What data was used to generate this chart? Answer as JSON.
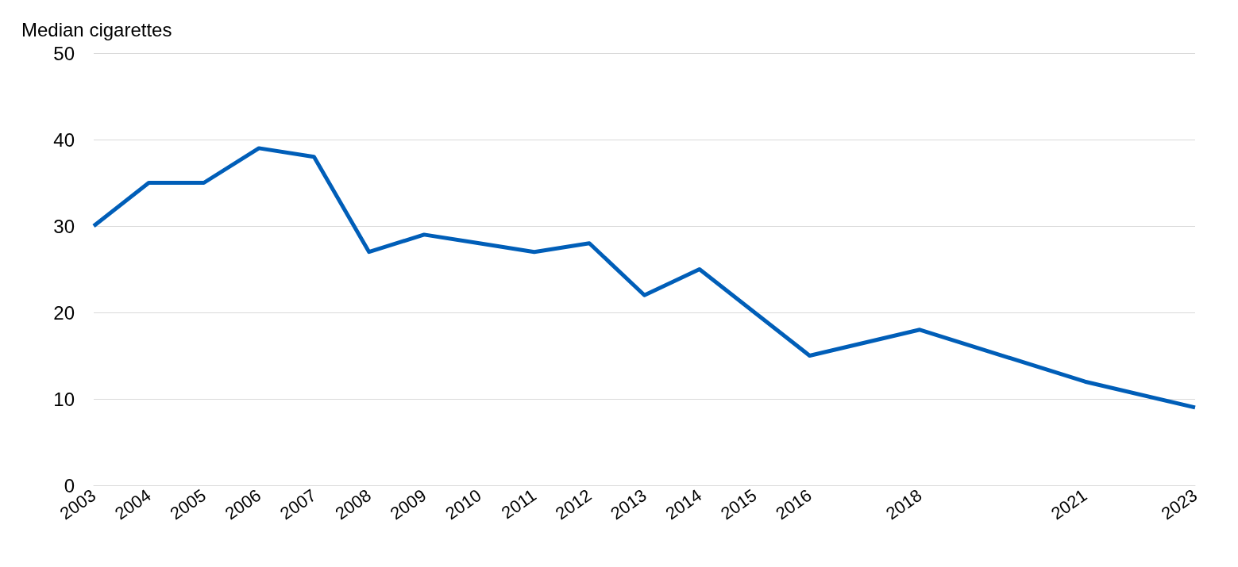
{
  "chart_data": {
    "type": "line",
    "ylabel": "Median cigarettes",
    "x": [
      2003,
      2004,
      2005,
      2006,
      2007,
      2008,
      2009,
      2010,
      2011,
      2012,
      2013,
      2014,
      2015,
      2016,
      2018,
      2021,
      2023
    ],
    "series": [
      {
        "color": "#005eb8",
        "values": [
          30,
          35,
          35,
          39,
          38,
          27,
          29,
          28,
          27,
          28,
          22,
          25,
          20,
          15,
          18,
          12,
          9
        ]
      }
    ],
    "xlim": [
      2003,
      2023
    ],
    "xticks": [
      2003,
      2004,
      2005,
      2006,
      2007,
      2008,
      2009,
      2010,
      2011,
      2012,
      2013,
      2014,
      2015,
      2016,
      2018,
      2021,
      2023
    ],
    "ylim": [
      0,
      50
    ],
    "yticks": [
      0,
      10,
      20,
      30,
      40,
      50
    ],
    "grid": "y",
    "marker": "none",
    "line_style": "solid"
  }
}
